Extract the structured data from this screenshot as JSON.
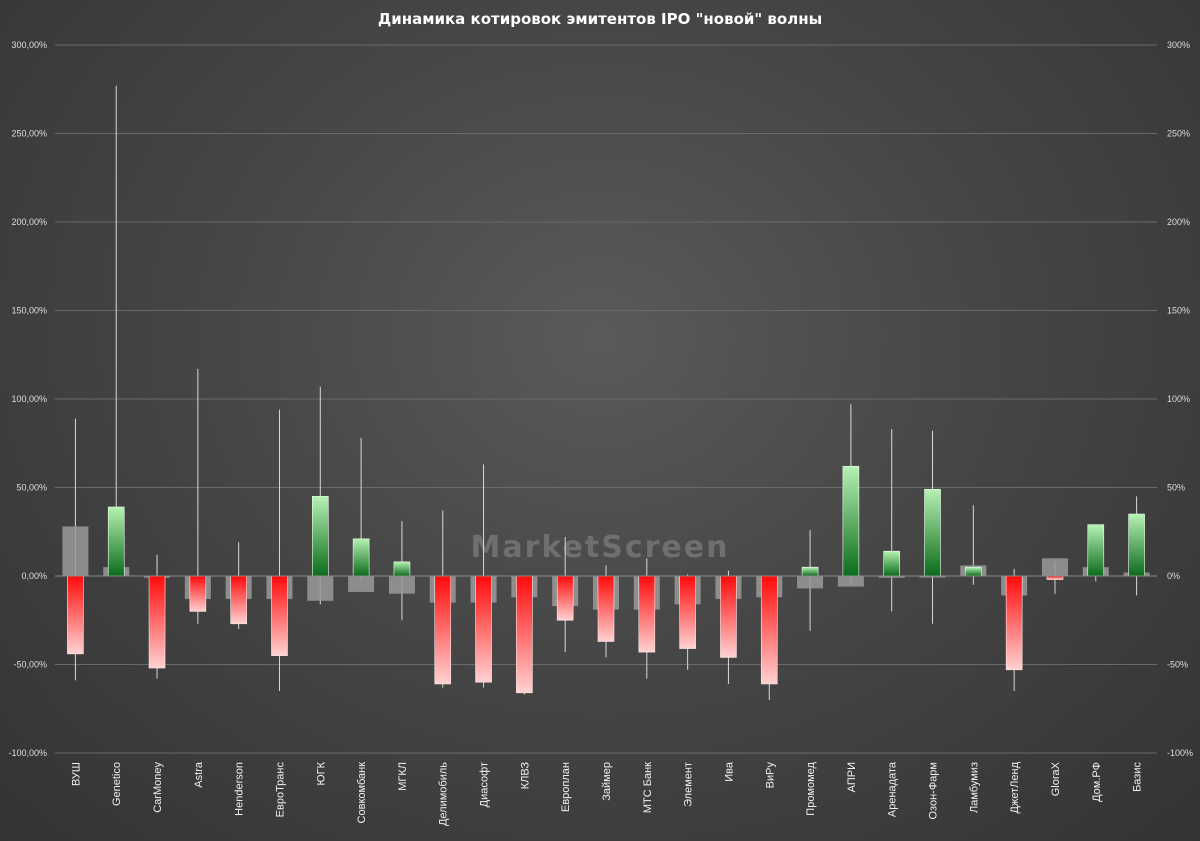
{
  "chart_data": {
    "type": "bar",
    "title": "Динамика котировок эмитентов IPO \"новой\" волны",
    "watermark": "MarketScreen",
    "y_left": {
      "min": -100,
      "max": 300,
      "ticks": [
        "-100,00%",
        "-50,00%",
        "0,00%",
        "50,00%",
        "100,00%",
        "150,00%",
        "200,00%",
        "250,00%",
        "300,00%"
      ]
    },
    "y_right": {
      "min": -100,
      "max": 300,
      "ticks": [
        "-100%",
        "-50%",
        "0%",
        "50%",
        "100%",
        "150%",
        "200%",
        "250%",
        "300%"
      ]
    },
    "grid": true,
    "colors": {
      "up_dark": "#0c6b1c",
      "up_light": "#b6f2b3",
      "down_dark": "#ff0a0a",
      "down_light": "#ffd2d2",
      "secondary": "#9a9a9a",
      "whisker": "#d8d8d8"
    },
    "categories": [
      "ВУШ",
      "Genetico",
      "CarMoney",
      "Astra",
      "Henderson",
      "ЕвроТранс",
      "ЮГК",
      "Совкомбанк",
      "МГКЛ",
      "Делимобиль",
      "Диасофт",
      "КЛВЗ",
      "Европлан",
      "Займер",
      "МТС Банк",
      "Элемент",
      "Ива",
      "ВиРу",
      "Промомед",
      "АПРИ",
      "Аренадата",
      "Озон-Фарм",
      "Ламбумиз",
      "ДжетЛенд",
      "GloraX",
      "Дом.РФ",
      "Базис"
    ],
    "series": [
      {
        "values": [
          -44,
          39,
          -52,
          -20,
          -27,
          -45,
          45,
          21,
          8,
          -61,
          -60,
          -66,
          -25,
          -37,
          -43,
          -41,
          -46,
          -61,
          5,
          62,
          14,
          49,
          5,
          -53,
          -2,
          29,
          35
        ]
      },
      {
        "values": [
          28,
          5,
          -1,
          -13,
          -13,
          -13,
          -14,
          -9,
          -10,
          -15,
          -15,
          -12,
          -17,
          -19,
          -19,
          -16,
          -13,
          -12,
          -7,
          -6,
          -1,
          0,
          6,
          -11,
          10,
          5,
          2
        ]
      },
      {
        "values": [
          89,
          277,
          12,
          117,
          19,
          94,
          107,
          78,
          31,
          37,
          63,
          -1,
          22,
          6,
          10,
          1,
          3,
          -1,
          26,
          97,
          83,
          82,
          40,
          4,
          8,
          2,
          45
        ]
      },
      {
        "values": [
          -59,
          1,
          -58,
          -27,
          -30,
          -65,
          -16,
          -2,
          -25,
          -63,
          -63,
          -67,
          -43,
          -46,
          -58,
          -53,
          -61,
          -70,
          -31,
          -5,
          -20,
          -27,
          -5,
          -65,
          -10,
          -3,
          -11
        ]
      }
    ]
  }
}
